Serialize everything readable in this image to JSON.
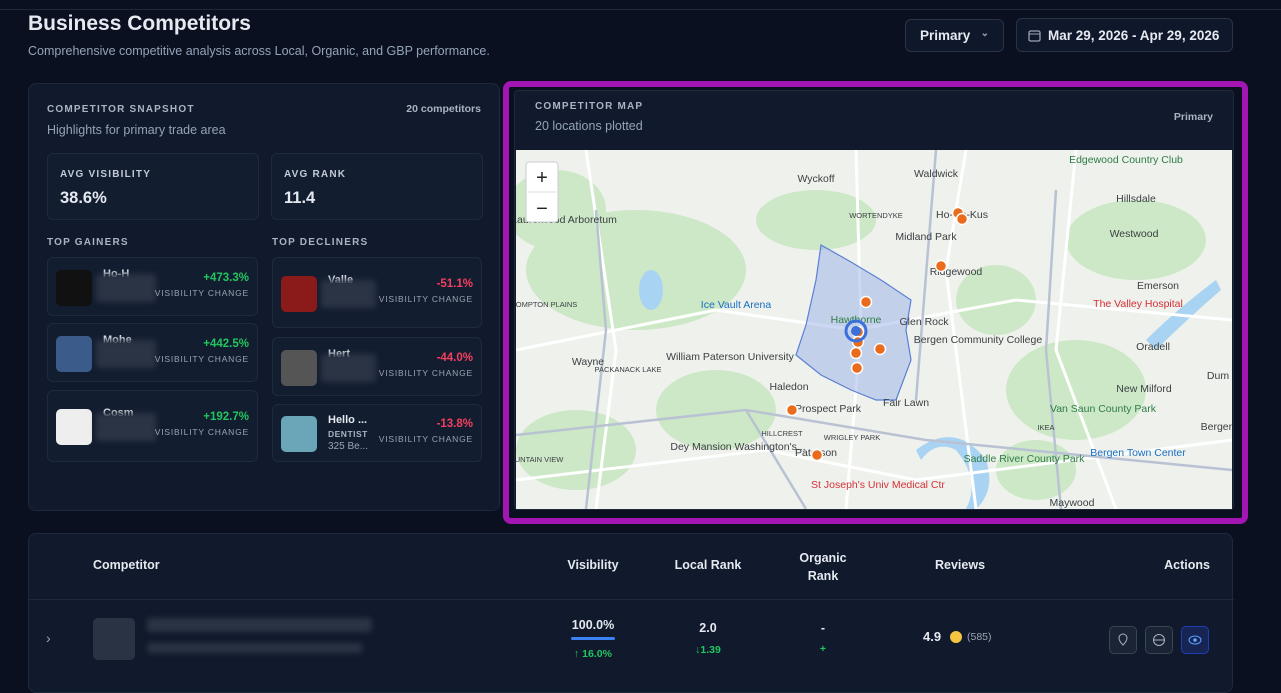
{
  "header": {
    "title": "Business Competitors",
    "subtitle": "Comprehensive competitive analysis across Local, Organic, and GBP performance.",
    "scope": "Primary",
    "date_range": "Mar 29, 2026 - Apr 29, 2026"
  },
  "snapshot": {
    "heading": "COMPETITOR SNAPSHOT",
    "count": "20 competitors",
    "subheading": "Highlights for primary trade area",
    "stats": [
      {
        "label": "AVG VISIBILITY",
        "value": "38.6%"
      },
      {
        "label": "AVG RANK",
        "value": "11.4"
      }
    ],
    "gainers_heading": "TOP GAINERS",
    "decliners_heading": "TOP DECLINERS",
    "gainers": [
      {
        "name": "Ho-H",
        "change": "+473.3%",
        "change_label": "VISIBILITY CHANGE"
      },
      {
        "name": "Mohe",
        "change": "+442.5%",
        "change_label": "VISIBILITY CHANGE"
      },
      {
        "name": "Cosm",
        "change": "+192.7%",
        "change_label": "VISIBILITY CHANGE"
      }
    ],
    "decliners": [
      {
        "name": "Valle",
        "change": "-51.1%",
        "change_label": "VISIBILITY CHANGE"
      },
      {
        "name": "Hert",
        "change": "-44.0%",
        "change_label": "VISIBILITY CHANGE"
      },
      {
        "name": "Hello ...",
        "category": "DENTIST",
        "address": "325 Be...",
        "change": "-13.8%",
        "change_label": "VISIBILITY CHANGE"
      }
    ]
  },
  "map": {
    "heading": "COMPETITOR MAP",
    "subheading": "20 locations plotted",
    "scope": "Primary",
    "zoom_in": "+",
    "zoom_out": "−",
    "labels": [
      "Wyckoff",
      "Waldwick",
      "Ho-Ho-Kus",
      "WORTENDYKE",
      "Midland Park",
      "Ridgewood",
      "Edgewood Country Club",
      "Hillsdale",
      "Westwood",
      "Emerson",
      "The Valley Hospital",
      "Oradell",
      "Glen Rock",
      "Bergen Community College",
      "Hawthorne",
      "Ice Vault Arena",
      "William Paterson University",
      "Wayne",
      "PACKANACK LAKE",
      "POMPTON PLAINS",
      "Laurelwood Arboretum",
      "Haledon",
      "Prospect Park",
      "Fair Lawn",
      "HILLCREST",
      "WRIGLEY PARK",
      "Paterson",
      "Dey Mansion Washington's...",
      "St Joseph's Univ Medical Ctr",
      "IKEA",
      "Bergen Town Center",
      "Saddle River County Park",
      "Van Saun County Park",
      "New Milford",
      "Maywood",
      "MOUNTAIN VIEW",
      "Dum",
      "Bergenf"
    ]
  },
  "table": {
    "columns": [
      "Competitor",
      "Visibility",
      "Local Rank",
      "Organic Rank",
      "Reviews",
      "Actions"
    ],
    "rows": [
      {
        "visibility": "100.0%",
        "visibility_change": "↑ 16.0%",
        "local_rank": "2.0",
        "local_rank_change": "↓1.39",
        "organic_rank": "-",
        "organic_rank_change": "+",
        "rating": "4.9",
        "review_count": "(585)"
      }
    ]
  }
}
